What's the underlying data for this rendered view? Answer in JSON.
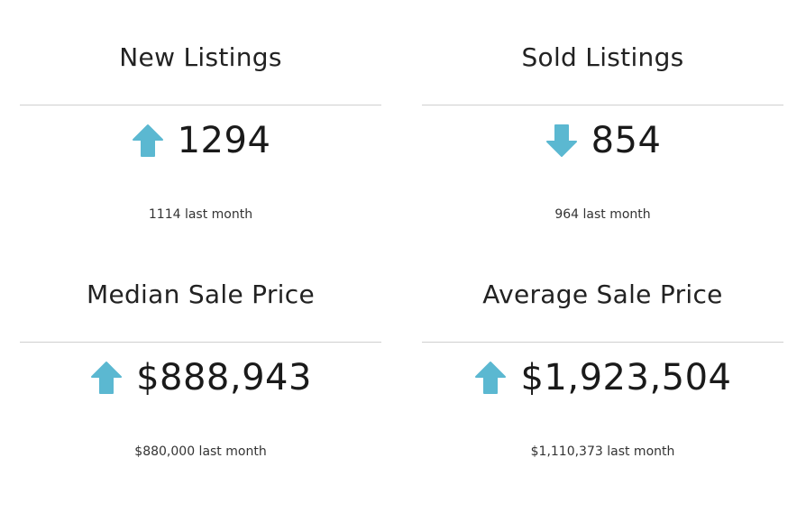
{
  "colors": {
    "arrow": "#5bb8d1",
    "divider": "#cfcfcf",
    "text": "#1f1f1f"
  },
  "stats": [
    {
      "title": "New Listings",
      "trend_icon": "arrow-up-icon",
      "value": "1294",
      "last_month": "1114 last month"
    },
    {
      "title": "Sold Listings",
      "trend_icon": "arrow-down-icon",
      "value": "854",
      "last_month": "964 last month"
    },
    {
      "title": "Median Sale Price",
      "trend_icon": "arrow-up-icon",
      "value": "$888,943",
      "last_month": "$880,000 last month"
    },
    {
      "title": "Average Sale Price",
      "trend_icon": "arrow-up-icon",
      "value": "$1,923,504",
      "last_month": "$1,110,373 last month"
    }
  ]
}
